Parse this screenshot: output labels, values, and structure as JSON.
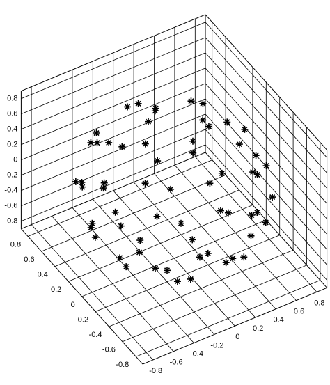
{
  "chart_data": {
    "type": "scatter3d",
    "xlim": [
      -0.9,
      0.9
    ],
    "ylim": [
      -0.9,
      0.9
    ],
    "zlim": [
      -0.9,
      0.9
    ],
    "xticks": [
      -0.8,
      -0.6,
      -0.4,
      -0.2,
      0,
      0.2,
      0.4,
      0.6,
      0.8
    ],
    "yticks": [
      -0.8,
      -0.6,
      -0.4,
      -0.2,
      0,
      0.2,
      0.4,
      0.6,
      0.8
    ],
    "zticks": [
      -0.8,
      -0.6,
      -0.4,
      -0.2,
      0,
      0.2,
      0.4,
      0.6,
      0.8
    ],
    "grid": true,
    "series": [
      {
        "color": "#000000",
        "x": [
          0.28,
          0,
          -0.28,
          0,
          0.46,
          0,
          -0.46,
          -0.46,
          0,
          0.46,
          0.69,
          0.49,
          0,
          -0.49,
          -0.69,
          -0.49,
          0,
          0.49,
          0.71,
          0.29,
          -0.29,
          -0.71,
          -0.71,
          -0.29,
          0.29,
          0.71,
          0.8,
          0.65,
          0.25,
          -0.25,
          -0.65,
          -0.8,
          -0.65,
          -0.25,
          0.25,
          0.65,
          0.77,
          0.54,
          0,
          -0.54,
          -0.77,
          -0.54,
          0,
          0.54,
          0.64,
          0.26,
          -0.26,
          -0.64,
          -0.64,
          -0.26,
          0.26,
          0.64,
          0.53,
          0.27,
          -0.27,
          -0.53,
          -0.27,
          0.27,
          0.2,
          -0.2,
          -0.2,
          0.2
        ],
        "y": [
          0,
          0.28,
          0,
          -0.28,
          0.27,
          0.53,
          0.27,
          -0.27,
          -0.53,
          -0.27,
          0,
          0.49,
          0.69,
          0.49,
          0,
          -0.49,
          -0.69,
          -0.49,
          0.29,
          0.71,
          0.71,
          0.29,
          -0.29,
          -0.71,
          -0.71,
          -0.29,
          0,
          0.47,
          0.76,
          0.76,
          0.47,
          0,
          -0.47,
          -0.76,
          -0.76,
          -0.47,
          0,
          0.54,
          0.77,
          0.54,
          0,
          -0.54,
          -0.77,
          -0.54,
          0.26,
          0.64,
          0.64,
          0.26,
          -0.26,
          -0.64,
          -0.64,
          -0.26,
          0,
          0.46,
          0.46,
          0,
          -0.46,
          -0.46,
          0.2,
          0.2,
          -0.2,
          -0.2
        ],
        "z": [
          0.75,
          0.75,
          0.75,
          0.75,
          0.6,
          0.6,
          0.6,
          0.6,
          0.6,
          0.6,
          0.4,
          0.4,
          0.4,
          0.4,
          0.4,
          0.4,
          0.4,
          0.4,
          0.2,
          0.2,
          0.2,
          0.2,
          0.2,
          0.2,
          0.2,
          0.2,
          0,
          0,
          0,
          0,
          0,
          0,
          0,
          0,
          0,
          0,
          -0.2,
          -0.2,
          -0.2,
          -0.2,
          -0.2,
          -0.2,
          -0.2,
          -0.2,
          -0.4,
          -0.4,
          -0.4,
          -0.4,
          -0.4,
          -0.4,
          -0.4,
          -0.4,
          -0.6,
          -0.6,
          -0.6,
          -0.6,
          -0.6,
          -0.6,
          -0.75,
          -0.75,
          -0.75,
          -0.75
        ]
      }
    ]
  }
}
